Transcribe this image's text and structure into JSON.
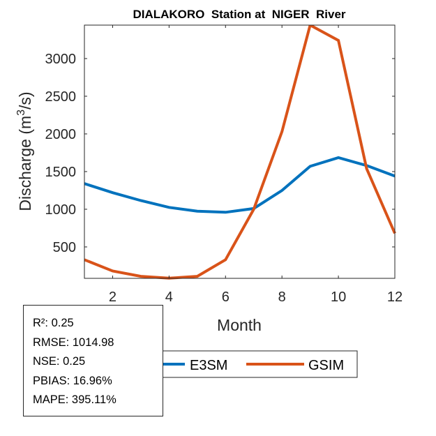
{
  "chart_data": {
    "type": "line",
    "title": "DIALAKORO  Station at  NIGER  River",
    "xlabel": "Month",
    "ylabel": "Discharge (m³/s)",
    "ylabel_parts": {
      "prefix": "Discharge (m",
      "superscript": "3",
      "suffix": "/s)"
    },
    "xlim": [
      1,
      12
    ],
    "ylim": [
      83,
      3444
    ],
    "xticks": [
      2,
      4,
      6,
      8,
      10,
      12
    ],
    "yticks": [
      500,
      1000,
      1500,
      2000,
      2500,
      3000
    ],
    "grid": false,
    "x": [
      1,
      2,
      3,
      4,
      5,
      6,
      7,
      8,
      9,
      10,
      11,
      12
    ],
    "series": [
      {
        "name": "E3SM",
        "color": "#0072BD",
        "values": [
          1340,
          1220,
          1115,
          1025,
          975,
          960,
          1010,
          1250,
          1570,
          1685,
          1580,
          1440
        ]
      },
      {
        "name": "GSIM",
        "color": "#D95319",
        "values": [
          330,
          180,
          110,
          85,
          110,
          330,
          1000,
          2030,
          3444,
          3240,
          1540,
          680
        ]
      }
    ],
    "legend_position": "bottom",
    "annotations": {
      "stats": [
        "R²: 0.25",
        "RMSE: 1014.98",
        "NSE: 0.25",
        "PBIAS: 16.96%",
        "MAPE: 395.11%"
      ]
    }
  }
}
